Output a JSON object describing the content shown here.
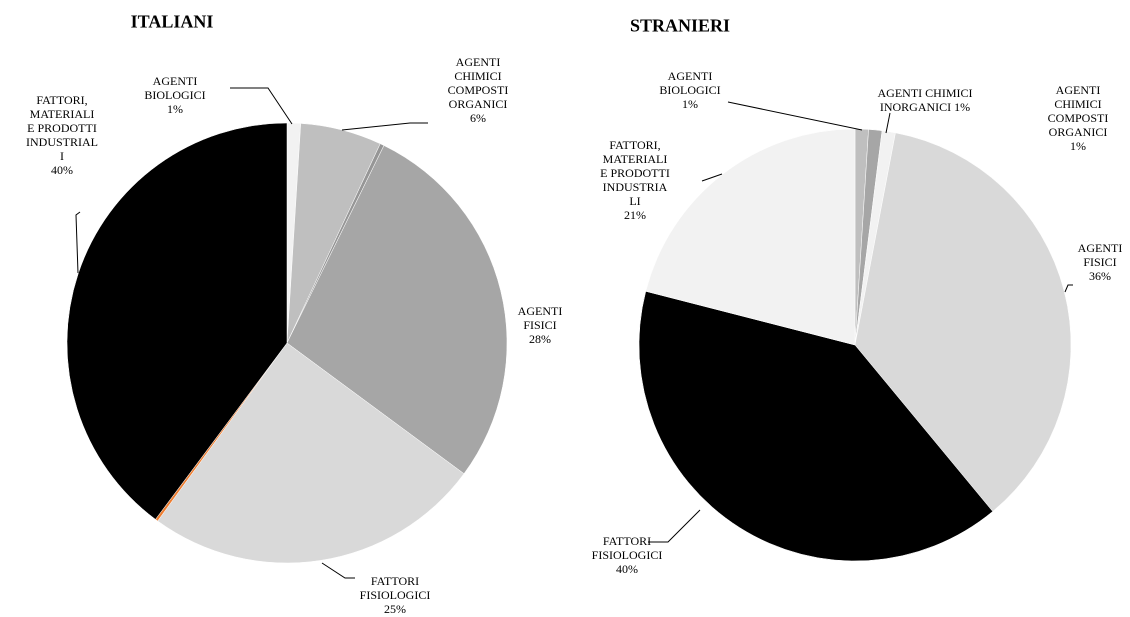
{
  "chart_data": [
    {
      "type": "pie",
      "title": "ITALIANI",
      "categories": [
        "AGENTI\nBIOLOGICI",
        "AGENTI\nCHIMICI\nCOMPOSTI\nORGANICI",
        null,
        "AGENTI\nFISICI",
        "FATTORI\nFISIOLOGICI",
        null,
        "FATTORI,\nMATERIALI\nE PRODOTTI\nINDUSTRIAL\nI"
      ],
      "values": [
        1,
        6,
        0.3,
        28,
        25,
        0.2,
        40
      ],
      "value_labels": [
        "1%",
        "6%",
        null,
        "28%",
        "25%",
        null,
        "40%"
      ],
      "colors": [
        "#f2f2f2",
        "#bfbfbf",
        "#969696",
        "#a6a6a6",
        "#d9d9d9",
        "#ed7d31",
        "#000000"
      ]
    },
    {
      "type": "pie",
      "title": "STRANIERI",
      "categories": [
        "AGENTI\nBIOLOGICI",
        "AGENTI CHIMICI\nINORGANICI",
        "AGENTI\nCHIMICI\nCOMPOSTI\nORGANICI",
        "AGENTI\nFISICI",
        "FATTORI\nFISIOLOGICI",
        "FATTORI,\nMATERIALI\nE PRODOTTI\nINDUSTRIA\nLI"
      ],
      "values": [
        1,
        1,
        1,
        36,
        40,
        21
      ],
      "value_labels": [
        "1%",
        "1%",
        "1%",
        "36%",
        "40%",
        "21%"
      ],
      "colors": [
        "#bfbfbf",
        "#a6a6a6",
        "#f2f2f2",
        "#d9d9d9",
        "#000000",
        "#f2f2f2"
      ]
    }
  ]
}
